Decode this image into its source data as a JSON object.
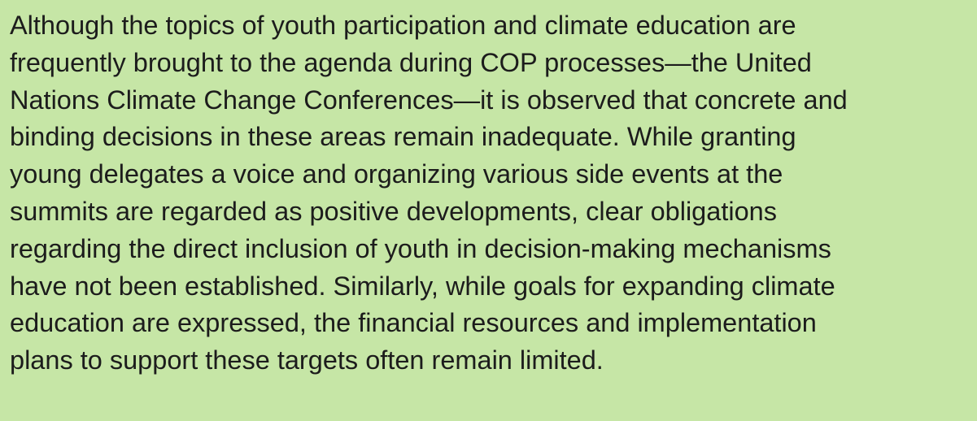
{
  "paragraph": {
    "lines": [
      "Although the topics of youth participation and climate education are",
      "frequently brought to the agenda during COP processes—the United",
      "Nations Climate Change Conferences—it is observed that concrete and",
      "binding decisions in these areas remain inadequate. While granting",
      "young delegates a voice and organizing various side events at the",
      "summits are regarded as positive developments, clear obligations",
      "regarding the direct inclusion of youth in decision-making mechanisms",
      "have not been established. Similarly, while goals for expanding climate",
      "education are expressed, the financial resources and implementation",
      "plans to support these targets often remain limited."
    ]
  }
}
